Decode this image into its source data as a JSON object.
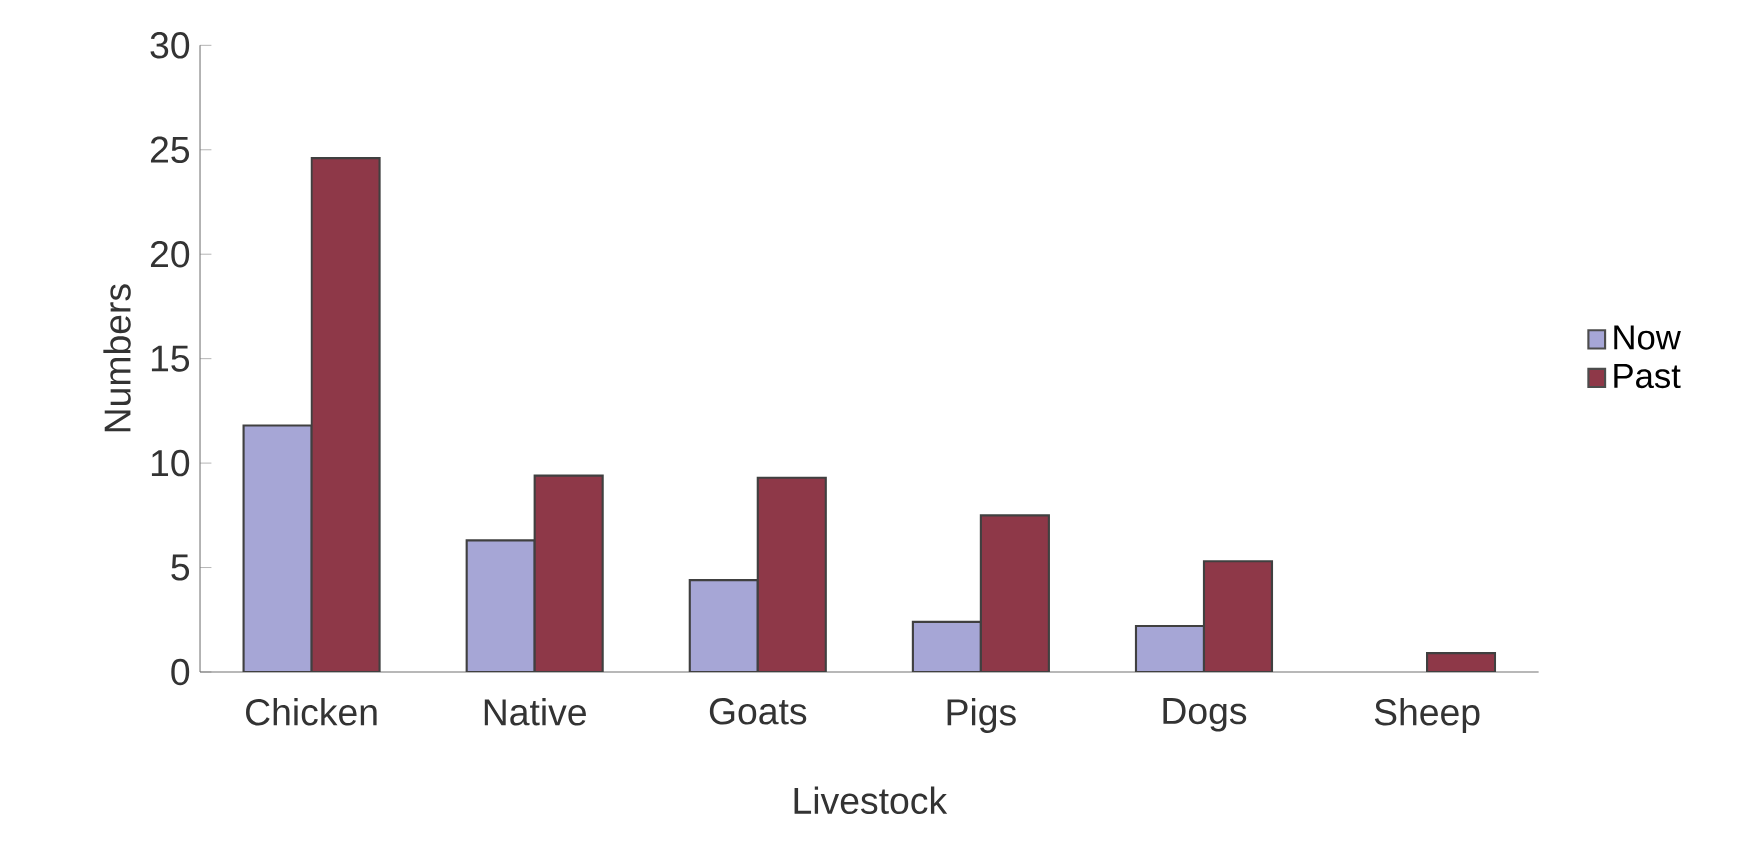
{
  "chart_data": {
    "type": "bar",
    "xlabel": "Livestock",
    "ylabel": "Numbers",
    "categories": [
      "Chicken",
      "Native",
      "Goats",
      "Pigs",
      "Dogs",
      "Sheep"
    ],
    "series": [
      {
        "name": "Now",
        "color": "#a6a6d6",
        "values": [
          11.8,
          6.3,
          4.4,
          2.4,
          2.2,
          null
        ]
      },
      {
        "name": "Past",
        "color": "#8e3848",
        "values": [
          24.6,
          9.4,
          9.3,
          7.5,
          5.3,
          0.9
        ]
      }
    ],
    "ylim": [
      0,
      30
    ],
    "yticks": [
      0,
      5,
      10,
      15,
      20,
      25,
      30
    ],
    "grid": false,
    "legend": "right"
  }
}
